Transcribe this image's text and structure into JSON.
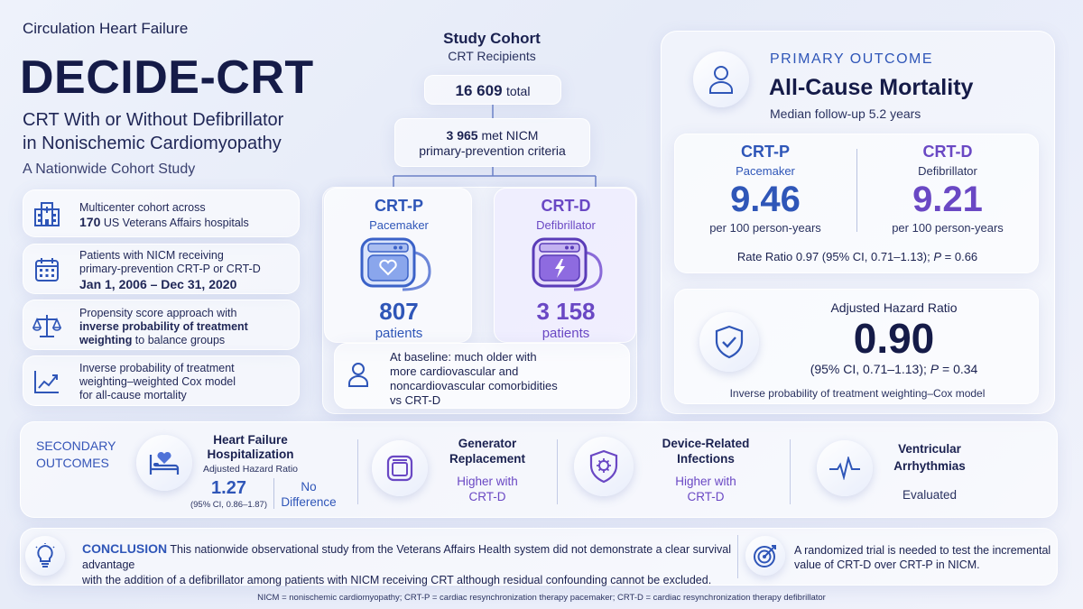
{
  "header": {
    "journal": "Circulation Heart Failure",
    "title": "DECIDE-CRT",
    "subtitle_line1": "CRT With or Without Defibrillator",
    "subtitle_line2": "in Nonischemic Cardiomyopathy",
    "study_type": "A Nationwide Cohort Study"
  },
  "features": [
    {
      "icon": "hospital-icon",
      "line1": "Multicenter cohort across",
      "line2_bold": "170",
      "line2_rest": " US Veterans Affairs hospitals"
    },
    {
      "icon": "calendar-icon",
      "line1": "Patients with NICM receiving",
      "line2": "primary-prevention CRT-P or CRT-D",
      "line3_bold": "Jan 1, 2006 – Dec 31, 2020"
    },
    {
      "icon": "scale-icon",
      "line1": "Propensity score approach with",
      "line2_bold": "inverse probability of treatment",
      "line3_bold": "weighting",
      "line3_rest": " to balance groups"
    },
    {
      "icon": "trend-chart-icon",
      "line1": "Inverse probability of treatment",
      "line2": "weighting–weighted Cox model",
      "line3": "for all-cause mortality"
    }
  ],
  "cohort": {
    "title": "Study Cohort",
    "subtitle": "CRT Recipients",
    "total_number": "16 609",
    "total_label": "total",
    "criteria_number": "3 965",
    "criteria_line1_rest": " met NICM",
    "criteria_line2": "primary-prevention criteria",
    "crtp": {
      "name": "CRT-P",
      "type": "Pacemaker",
      "count": "807",
      "count_label": "patients"
    },
    "crtd": {
      "name": "CRT-D",
      "type": "Defibrillator",
      "count": "3 158",
      "count_label": "patients"
    },
    "baseline_line1": "At baseline: much older with",
    "baseline_line2": "more cardiovascular and",
    "baseline_line3": "noncardiovascular comorbidities",
    "baseline_line4": "vs CRT-D"
  },
  "primary": {
    "label": "PRIMARY OUTCOME",
    "title": "All-Cause Mortality",
    "followup": "Median follow-up 5.2 years",
    "crtp": {
      "name": "CRT-P",
      "type": "Pacemaker",
      "rate": "9.46",
      "unit": "per 100 person-years"
    },
    "crtd": {
      "name": "CRT-D",
      "type": "Defibrillator",
      "rate": "9.21",
      "unit": "per 100 person-years"
    },
    "rate_ratio_text": "Rate Ratio 0.97 (95% CI, 0.71–1.13); ",
    "rate_ratio_p_label": "P",
    "rate_ratio_p_value": " = 0.66",
    "hr_label": "Adjusted Hazard Ratio",
    "hr_value": "0.90",
    "hr_ci": "(95% CI, 0.71–1.13); ",
    "hr_p_label": "P",
    "hr_p_value": " = 0.34",
    "hr_model": "Inverse probability of treatment weighting–Cox model"
  },
  "secondary": {
    "label_line1": "SECONDARY",
    "label_line2": "OUTCOMES",
    "hf": {
      "title_line1": "Heart Failure",
      "title_line2": "Hospitalization",
      "sub": "Adjusted Hazard Ratio",
      "value": "1.27",
      "ci": "(95% CI, 0.86–1.87)",
      "verdict_line1": "No",
      "verdict_line2": "Difference"
    },
    "generator": {
      "title_line1": "Generator",
      "title_line2": "Replacement",
      "result_line1": "Higher with",
      "result_line2": "CRT-D"
    },
    "infections": {
      "title_line1": "Device-Related",
      "title_line2": "Infections",
      "result_line1": "Higher with",
      "result_line2": "CRT-D"
    },
    "arrhythmias": {
      "title_line1": "Ventricular",
      "title_line2": "Arrhythmias",
      "result": "Evaluated"
    }
  },
  "conclusion": {
    "label": "CONCLUSION",
    "text_line1": "This nationwide observational study from the Veterans Affairs Health system did not demonstrate a clear survival advantage",
    "text_line2": "with the addition of a defibrillator among patients with NICM receiving CRT although residual confounding cannot be excluded.",
    "target_line1": "A randomized trial is needed to test the incremental",
    "target_line2": "value of CRT-D over CRT-P in NICM."
  },
  "footnote": "NICM = nonischemic cardiomyopathy; CRT-P = cardiac resynchronization therapy pacemaker; CRT-D = cardiac resynchronization therapy defibrillator",
  "colors": {
    "navy": "#1a2150",
    "blue": "#2f56b8",
    "purple": "#6a48c4"
  }
}
